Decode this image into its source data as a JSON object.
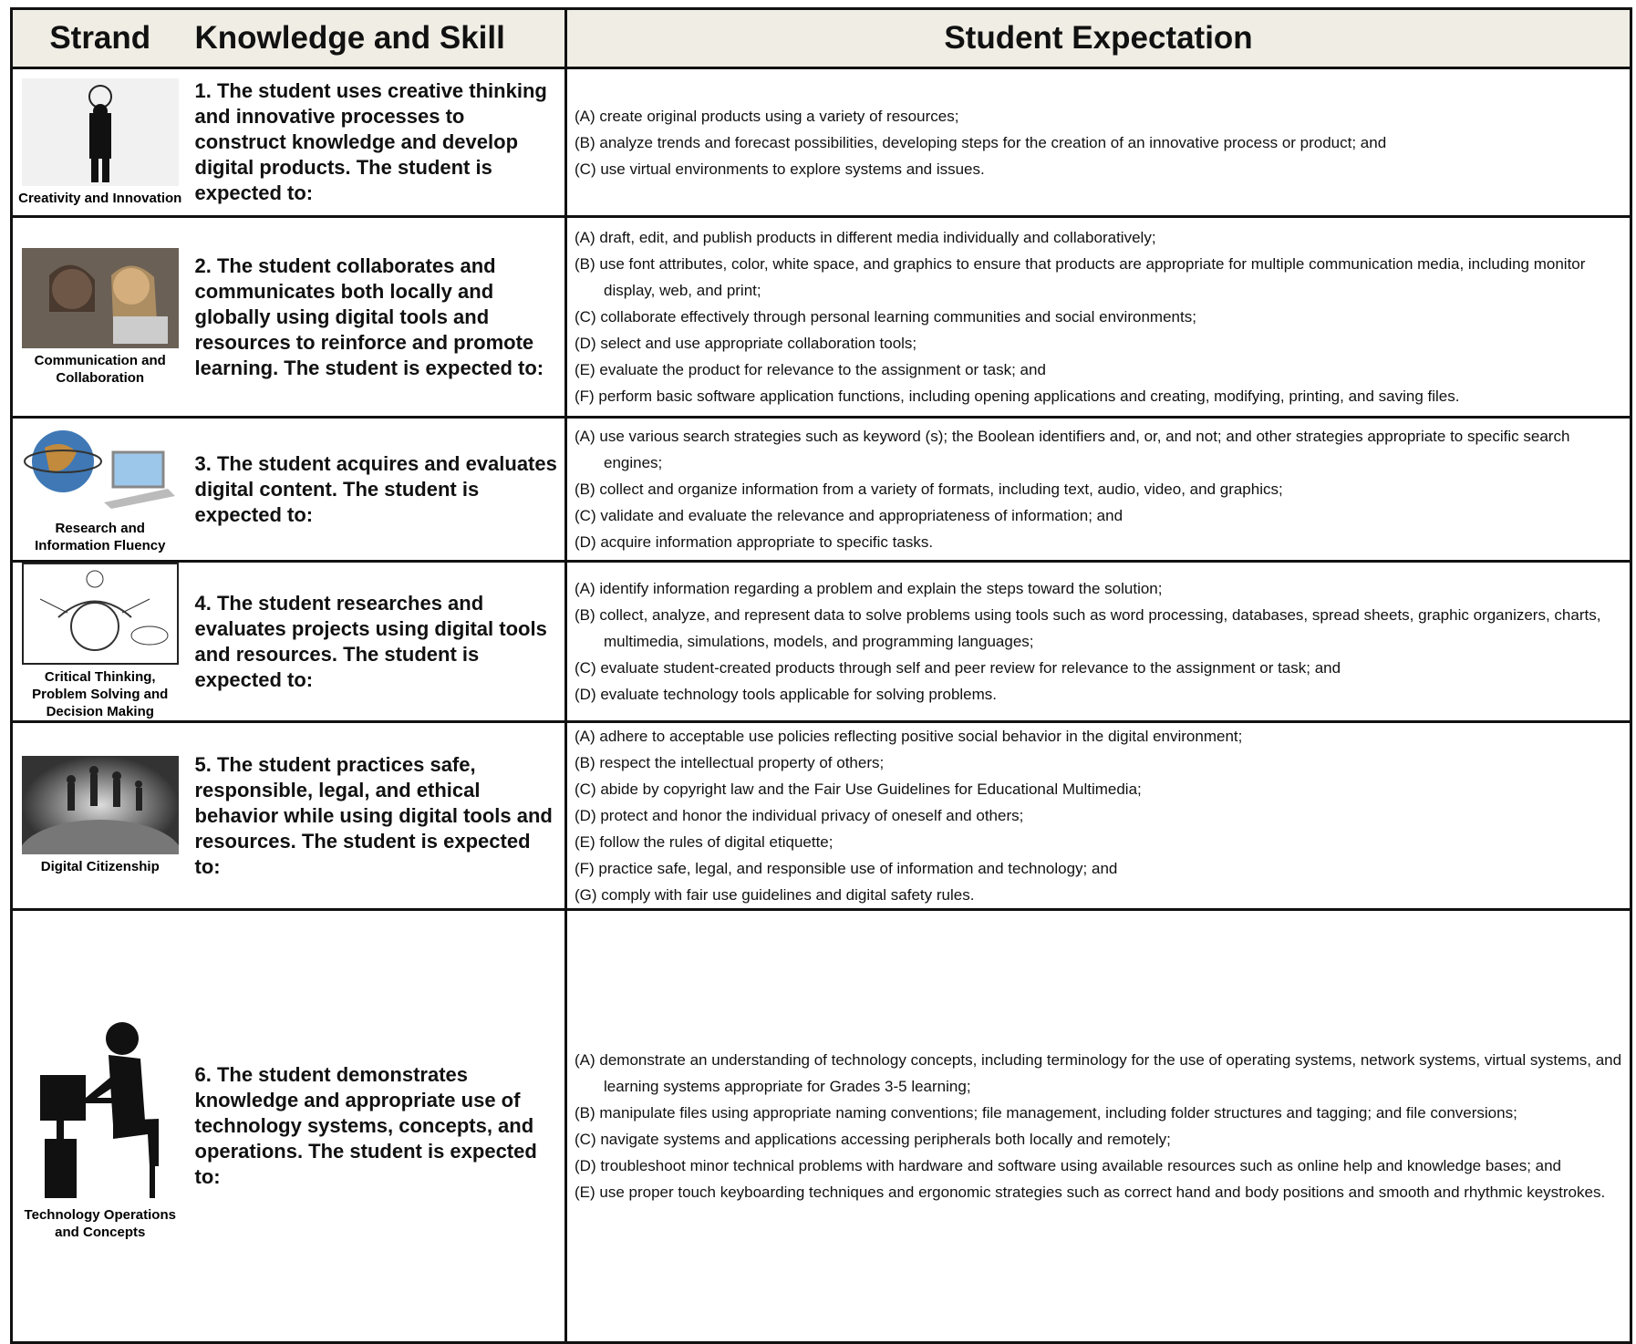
{
  "table": {
    "headers": [
      "Strand",
      "Knowledge and Skill",
      "Student Expectation"
    ],
    "rows": [
      {
        "strand": "Creativity and Innovation",
        "skill": "1. The student uses creative thinking and innovative processes to construct knowledge and develop digital products. The student is expected to:",
        "expectations": [
          "(A) create original products using a variety of resources;",
          "(B) analyze trends and forecast possibilities, developing steps for the creation of an innovative process or product; and",
          "(C) use virtual environments to explore systems and issues."
        ]
      },
      {
        "strand": "Communication and Collaboration",
        "skill": "2. The student collaborates and communicates both locally and globally using digital tools and resources to reinforce and promote learning. The student is expected to:",
        "expectations": [
          "(A) draft, edit, and publish products in different media individually and collaboratively;",
          "(B) use font attributes, color, white space, and graphics to ensure that products are appropriate for multiple communication media, including monitor display, web, and print;",
          "(C) collaborate effectively through personal learning communities and social environments;",
          "(D) select and use appropriate collaboration tools;",
          "(E) evaluate the product for relevance to the assignment or task; and",
          "(F) perform basic software application functions, including opening applications and creating, modifying, printing, and saving files."
        ]
      },
      {
        "strand": "Research and Information Fluency",
        "skill": "3. The student acquires and evaluates digital content. The student is expected to:",
        "expectations": [
          "(A) use various search strategies such as keyword (s); the Boolean identifiers and, or, and not; and other strategies appropriate to specific search engines;",
          "(B) collect and organize information from a variety of formats, including text, audio, video, and graphics;",
          "(C) validate and evaluate the relevance and appropriateness of information; and",
          "(D) acquire information appropriate to specific tasks."
        ]
      },
      {
        "strand": "Critical Thinking, Problem Solving and Decision Making",
        "skill": "4. The student researches and evaluates projects using digital tools and resources. The student is expected to:",
        "expectations": [
          "(A) identify information regarding a problem and explain the steps toward the solution;",
          "(B) collect, analyze, and represent data to solve problems using tools such as word processing, databases, spread sheets, graphic organizers, charts, multimedia, simulations, models, and programming languages;",
          "(C) evaluate student-created products through self and peer review for relevance to the assignment or task; and",
          "(D) evaluate technology tools applicable for solving problems."
        ]
      },
      {
        "strand": "Digital Citizenship",
        "skill": "5. The student practices safe, responsible, legal, and ethical behavior while using digital tools and resources. The student is expected to:",
        "expectations": [
          "(A) adhere to acceptable use policies reflecting positive social behavior in the digital environment;",
          "(B) respect the intellectual property of others;",
          "(C) abide by copyright law and the Fair Use Guidelines for Educational Multimedia;",
          "(D) protect and honor the individual privacy of oneself and others;",
          "(E) follow the rules of digital etiquette;",
          "(F) practice safe, legal, and responsible use of information and technology; and",
          "(G) comply with fair use guidelines and digital safety rules."
        ]
      },
      {
        "strand": "Technology Operations and Concepts",
        "skill": "6. The student demonstrates knowledge and appropriate use of technology systems, concepts, and operations. The student is expected to:",
        "expectations": [
          "(A) demonstrate an understanding of technology concepts, including terminology for the use of operating systems, network systems, virtual systems, and learning systems appropriate for Grades 3-5 learning;",
          "(B) manipulate files using appropriate naming conventions; file management, including folder structures and tagging; and file conversions;",
          "(C) navigate systems and applications accessing peripherals both locally and remotely;",
          "(D) troubleshoot minor technical problems with hardware and software using available resources such as online help and knowledge bases; and",
          "(E) use proper touch keyboarding techniques and ergonomic strategies such as correct hand and body positions and smooth and rhythmic keystrokes."
        ]
      }
    ]
  }
}
